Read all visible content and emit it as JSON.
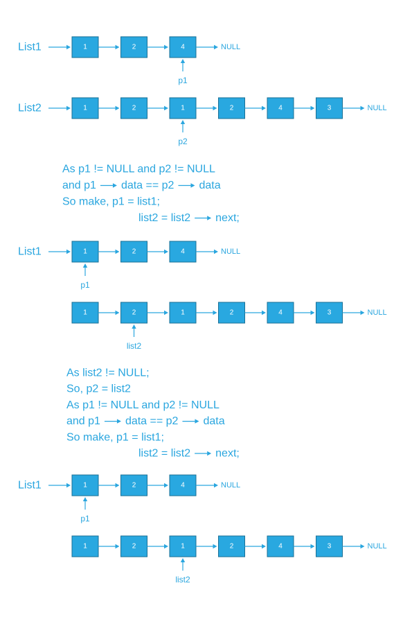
{
  "colors": {
    "node": "#29a8e0",
    "node_border": "#1a6f94",
    "text": "#2aa6df",
    "node_text": "#ffffff"
  },
  "scenes": [
    {
      "id": "initial-list1",
      "label": "List1",
      "values": [
        "1",
        "2",
        "4"
      ],
      "terminator": "NULL",
      "pointer": {
        "label": "p1",
        "index": 2
      }
    },
    {
      "id": "initial-list2",
      "label": "List2",
      "values": [
        "1",
        "2",
        "1",
        "2",
        "4",
        "3"
      ],
      "terminator": "NULL",
      "pointer": {
        "label": "p2",
        "index": 2
      }
    },
    {
      "id": "step1-list1",
      "label": "List1",
      "values": [
        "1",
        "2",
        "4"
      ],
      "terminator": "NULL",
      "pointer": {
        "label": "p1",
        "index": 0
      }
    },
    {
      "id": "step1-list2",
      "label": "",
      "values": [
        "1",
        "2",
        "1",
        "2",
        "4",
        "3"
      ],
      "terminator": "NULL",
      "pointer": {
        "label": "list2",
        "index": 1
      }
    },
    {
      "id": "step2-list1",
      "label": "List1",
      "values": [
        "1",
        "2",
        "4"
      ],
      "terminator": "NULL",
      "pointer": {
        "label": "p1",
        "index": 0
      }
    },
    {
      "id": "step2-list2",
      "label": "",
      "values": [
        "1",
        "2",
        "1",
        "2",
        "4",
        "3"
      ],
      "terminator": "NULL",
      "pointer": {
        "label": "list2",
        "index": 2
      }
    }
  ],
  "text_blocks": [
    {
      "id": "explanation-1",
      "lines": [
        {
          "segments": [
            "As  p1 != NULL  and  p2 != NULL"
          ]
        },
        {
          "segments": [
            "and  p1",
            "data == p2",
            "data"
          ]
        },
        {
          "segments": [
            "So make,     p1 = list1;"
          ]
        },
        {
          "segments": [
            "list2 = list2",
            "next;"
          ]
        }
      ]
    },
    {
      "id": "explanation-2",
      "lines": [
        {
          "segments": [
            "As  list2 != NULL;"
          ]
        },
        {
          "segments": [
            "So,  p2 = list2"
          ]
        },
        {
          "segments": [
            "As  p1 != NULL  and  p2 != NULL"
          ]
        },
        {
          "segments": [
            "and  p1",
            "data == p2",
            "data"
          ]
        },
        {
          "segments": [
            "So make,     p1 = list1;"
          ]
        },
        {
          "segments": [
            "list2 = list2",
            "next;"
          ]
        }
      ]
    }
  ]
}
